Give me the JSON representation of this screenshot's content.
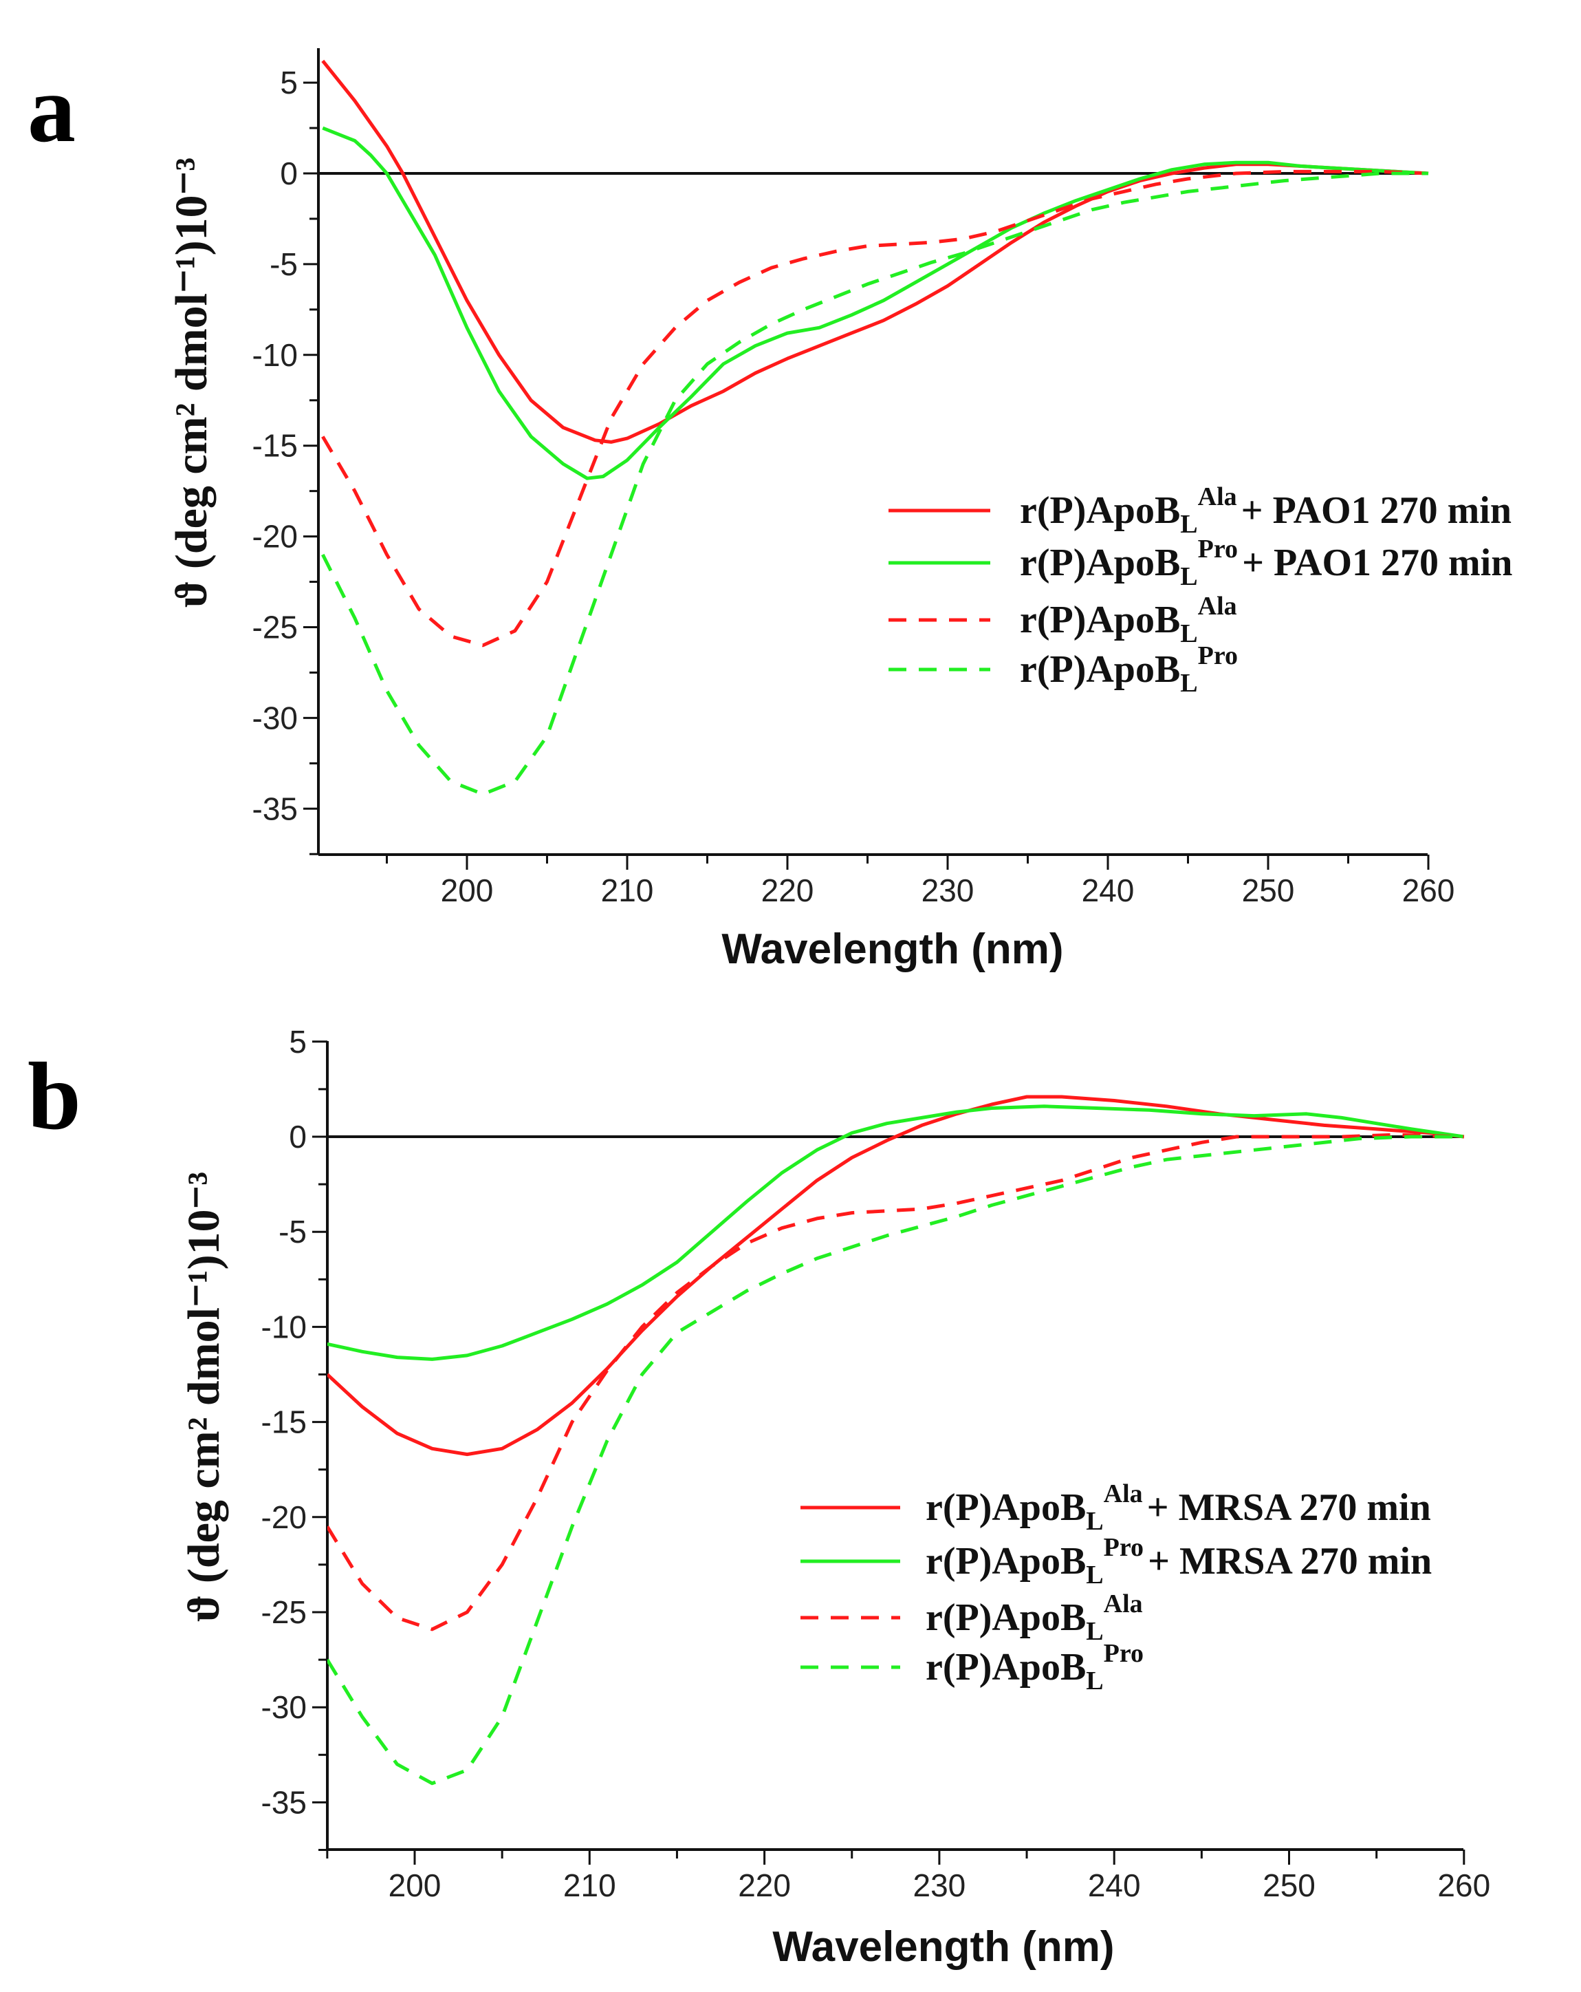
{
  "chart_data": [
    {
      "panel_label": "a",
      "type": "line",
      "xlabel": "Wavelength (nm)",
      "ylabel": "ϑ (deg cm² dmol⁻¹)10⁻³",
      "xlim": [
        191,
        260
      ],
      "ylim": [
        -37.5,
        7.5
      ],
      "xticks": [
        200,
        210,
        220,
        230,
        240,
        250,
        260
      ],
      "yticks": [
        5,
        0,
        -5,
        -10,
        -15,
        -20,
        -25,
        -30,
        -35
      ],
      "zero_line": true,
      "legend_position": "center-right",
      "series": [
        {
          "name": "r(P)ApoB_L^Ala + PAO1 270 min",
          "label": {
            "base": "r(P)ApoB",
            "sub": "L",
            "sup": "Ala",
            "suffix": "+ PAO1 270 min"
          },
          "color": "#ff1a1a",
          "dash": false,
          "x": [
            191,
            193,
            195,
            196,
            198,
            200,
            202,
            204,
            206,
            208,
            209,
            210,
            212,
            214,
            216,
            218,
            220,
            222,
            224,
            226,
            228,
            230,
            232,
            234,
            236,
            238,
            240,
            242,
            244,
            246,
            248,
            250,
            252,
            254,
            256,
            258,
            260
          ],
          "y": [
            6.2,
            4,
            1.5,
            0,
            -3.5,
            -7,
            -10,
            -12.5,
            -14,
            -14.7,
            -14.8,
            -14.6,
            -13.8,
            -12.8,
            -12,
            -11,
            -10.2,
            -9.5,
            -8.8,
            -8.1,
            -7.2,
            -6.2,
            -5,
            -3.8,
            -2.7,
            -1.8,
            -1,
            -0.4,
            0,
            0.3,
            0.5,
            0.5,
            0.4,
            0.3,
            0.2,
            0.1,
            0
          ]
        },
        {
          "name": "r(P)ApoB_L^Pro + PAO1 270 min",
          "label": {
            "base": "r(P)ApoB",
            "sub": "L",
            "sup": "Pro",
            "suffix": "+ PAO1 270 min"
          },
          "color": "#22ee22",
          "dash": false,
          "x": [
            191,
            193,
            194,
            195,
            196,
            198,
            200,
            202,
            204,
            206,
            207.5,
            208.5,
            210,
            212,
            214,
            216,
            218,
            220,
            222,
            224,
            226,
            228,
            230,
            232,
            234,
            236,
            238,
            240,
            242,
            244,
            246,
            248,
            250,
            252,
            254,
            256,
            258,
            260
          ],
          "y": [
            2.5,
            1.8,
            1,
            0,
            -1.5,
            -4.5,
            -8.5,
            -12,
            -14.5,
            -16,
            -16.8,
            -16.7,
            -15.8,
            -14,
            -12.3,
            -10.5,
            -9.5,
            -8.8,
            -8.5,
            -7.8,
            -7,
            -6,
            -5,
            -4,
            -3,
            -2.2,
            -1.5,
            -0.9,
            -0.3,
            0.2,
            0.5,
            0.6,
            0.6,
            0.4,
            0.3,
            0.2,
            0.1,
            0
          ]
        },
        {
          "name": "r(P)ApoB_L^Ala",
          "label": {
            "base": "r(P)ApoB",
            "sub": "L",
            "sup": "Ala",
            "suffix": ""
          },
          "color": "#ff1a1a",
          "dash": true,
          "x": [
            191,
            193,
            195,
            197,
            199,
            201,
            203,
            205,
            207,
            209,
            211,
            213,
            215,
            217,
            219,
            221,
            223,
            225,
            227,
            229,
            231,
            233,
            235,
            237,
            239,
            241,
            243,
            245,
            248,
            251,
            254,
            257,
            260
          ],
          "y": [
            -14.5,
            -17.5,
            -21,
            -24,
            -25.5,
            -26,
            -25.2,
            -22.5,
            -18,
            -13.5,
            -10.5,
            -8.5,
            -7,
            -6,
            -5.2,
            -4.7,
            -4.3,
            -4,
            -3.9,
            -3.8,
            -3.6,
            -3.2,
            -2.6,
            -2,
            -1.4,
            -1,
            -0.6,
            -0.3,
            0,
            0.1,
            0.1,
            0.1,
            0
          ]
        },
        {
          "name": "r(P)ApoB_L^Pro",
          "label": {
            "base": "r(P)ApoB",
            "sub": "L",
            "sup": "Pro",
            "suffix": ""
          },
          "color": "#22ee22",
          "dash": true,
          "x": [
            191,
            193,
            195,
            197,
            199,
            201,
            203,
            205,
            207,
            209,
            211,
            213,
            215,
            217,
            219,
            221,
            223,
            225,
            227,
            229,
            231,
            233,
            235,
            237,
            239,
            241,
            243,
            245,
            248,
            251,
            254,
            257,
            260
          ],
          "y": [
            -21,
            -24.5,
            -28.5,
            -31.5,
            -33.5,
            -34.2,
            -33.5,
            -31,
            -26,
            -21,
            -16,
            -12.5,
            -10.5,
            -9.3,
            -8.3,
            -7.5,
            -6.8,
            -6.1,
            -5.5,
            -4.9,
            -4.4,
            -3.8,
            -3.2,
            -2.6,
            -2,
            -1.6,
            -1.3,
            -1,
            -0.7,
            -0.4,
            -0.2,
            0,
            0
          ]
        }
      ]
    },
    {
      "panel_label": "b",
      "type": "line",
      "xlabel": "Wavelength (nm)",
      "ylabel": "ϑ (deg cm² dmol⁻¹)10⁻³",
      "xlim": [
        195,
        260
      ],
      "ylim": [
        -37.5,
        5
      ],
      "xticks": [
        200,
        210,
        220,
        230,
        240,
        250,
        260
      ],
      "yticks": [
        5,
        0,
        -5,
        -10,
        -15,
        -20,
        -25,
        -30,
        -35
      ],
      "zero_line": true,
      "legend_position": "center-right",
      "series": [
        {
          "name": "r(P)ApoB_L^Ala + MRSA 270 min",
          "label": {
            "base": "r(P)ApoB",
            "sub": "L",
            "sup": "Ala",
            "suffix": "+ MRSA 270 min"
          },
          "color": "#ff1a1a",
          "dash": false,
          "x": [
            195,
            197,
            199,
            201,
            203,
            205,
            207,
            209,
            211,
            213,
            215,
            217,
            219,
            221,
            223,
            225,
            227,
            229,
            231,
            233,
            235,
            237,
            240,
            243,
            246,
            249,
            252,
            255,
            258,
            260
          ],
          "y": [
            -12.5,
            -14.2,
            -15.6,
            -16.4,
            -16.7,
            -16.4,
            -15.4,
            -14,
            -12.2,
            -10.2,
            -8.4,
            -6.8,
            -5.3,
            -3.8,
            -2.3,
            -1.1,
            -0.2,
            0.6,
            1.2,
            1.7,
            2.1,
            2.1,
            1.9,
            1.6,
            1.2,
            0.9,
            0.6,
            0.4,
            0.2,
            0
          ]
        },
        {
          "name": "r(P)ApoB_L^Pro + MRSA 270 min",
          "label": {
            "base": "r(P)ApoB",
            "sub": "L",
            "sup": "Pro",
            "suffix": "+ MRSA 270 min"
          },
          "color": "#22ee22",
          "dash": false,
          "x": [
            195,
            197,
            199,
            201,
            203,
            205,
            207,
            209,
            211,
            213,
            215,
            217,
            219,
            221,
            223,
            225,
            227,
            229,
            231,
            233,
            236,
            239,
            242,
            245,
            248,
            251,
            253,
            255,
            257,
            260
          ],
          "y": [
            -10.9,
            -11.3,
            -11.6,
            -11.7,
            -11.5,
            -11,
            -10.3,
            -9.6,
            -8.8,
            -7.8,
            -6.6,
            -5,
            -3.4,
            -1.9,
            -0.7,
            0.2,
            0.7,
            1,
            1.3,
            1.5,
            1.6,
            1.5,
            1.4,
            1.2,
            1.1,
            1.2,
            1,
            0.7,
            0.4,
            0
          ]
        },
        {
          "name": "r(P)ApoB_L^Ala",
          "label": {
            "base": "r(P)ApoB",
            "sub": "L",
            "sup": "Ala",
            "suffix": ""
          },
          "color": "#ff1a1a",
          "dash": true,
          "x": [
            195,
            197,
            199,
            201,
            203,
            205,
            207,
            209,
            211,
            213,
            215,
            217,
            219,
            221,
            223,
            225,
            227,
            229,
            231,
            233,
            235,
            237,
            239,
            241,
            243,
            245,
            247,
            250,
            253,
            256,
            260
          ],
          "y": [
            -20.5,
            -23.5,
            -25.3,
            -25.9,
            -25,
            -22.5,
            -19,
            -15,
            -12.3,
            -10,
            -8.2,
            -6.8,
            -5.6,
            -4.8,
            -4.3,
            -4,
            -3.9,
            -3.8,
            -3.5,
            -3.1,
            -2.7,
            -2.3,
            -1.7,
            -1.1,
            -0.7,
            -0.3,
            0,
            0,
            0,
            0.1,
            0
          ]
        },
        {
          "name": "r(P)ApoB_L^Pro",
          "label": {
            "base": "r(P)ApoB",
            "sub": "L",
            "sup": "Pro",
            "suffix": ""
          },
          "color": "#22ee22",
          "dash": true,
          "x": [
            195,
            197,
            199,
            201,
            203,
            205,
            207,
            209,
            211,
            213,
            215,
            217,
            219,
            221,
            223,
            225,
            227,
            229,
            231,
            233,
            235,
            237,
            239,
            241,
            243,
            245,
            248,
            251,
            254,
            257,
            260
          ],
          "y": [
            -27.5,
            -30.5,
            -33,
            -34,
            -33.3,
            -30.5,
            -25.5,
            -20.5,
            -16,
            -12.5,
            -10.3,
            -9.2,
            -8.1,
            -7.2,
            -6.4,
            -5.8,
            -5.2,
            -4.7,
            -4.2,
            -3.6,
            -3.1,
            -2.6,
            -2.1,
            -1.6,
            -1.2,
            -1,
            -0.7,
            -0.4,
            -0.1,
            0,
            0
          ]
        }
      ]
    }
  ]
}
